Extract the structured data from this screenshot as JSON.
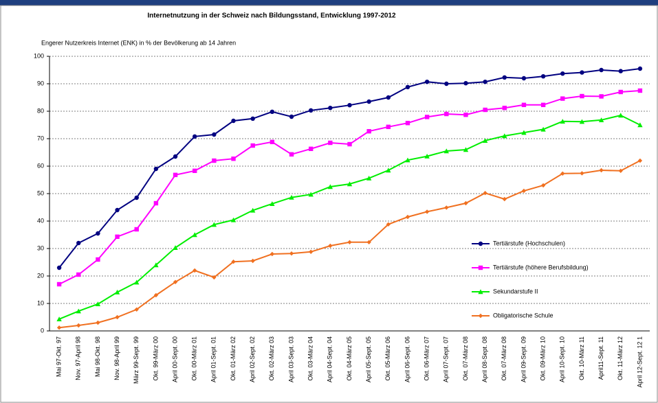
{
  "chart_data": {
    "type": "line",
    "title": "Internetnutzung in der Schweiz nach Bildungsstand, Entwicklung 1997-2012",
    "y_label": "Engerer Nutzerkreis Internet (ENK) in % der Bevölkerung ab 14 Jahren",
    "categories": [
      "Mai 97-Okt. 97",
      "Nov. 97-April 98",
      "Mai 98-Okt. 98",
      "Nov. 98-April 99",
      "März 99-Sept. 99",
      "Okt. 99-März 00",
      "April 00-Sept. 00",
      "Okt. 00-März 01",
      "April 01-Sept. 01",
      "Okt. 01-März 02",
      "April 02-Sept. 02",
      "Okt. 02-März 03",
      "April 03-Sept. 03",
      "Okt. 03-März 04",
      "April 04-Sept. 04",
      "Okt. 04-März 05",
      "April 05-Sept. 05",
      "Okt. 05-März 06",
      "April 06-Sept. 06",
      "Okt. 06-März 07",
      "April 07-Sept. 07",
      "Okt. 07-März 08",
      "April 08-Sept. 08",
      "Okt. 07-März 08",
      "April 09-Sept. 09",
      "Okt. 09-März 10",
      "April 10-Sept. 10",
      "Okt. 10-März 11",
      "April11-Sept. 11",
      "Okt. 11-März 12",
      "April 12-Sept. 12 1"
    ],
    "series": [
      {
        "name": "Tertiärstufe (Hochschulen)",
        "color": "#000080",
        "marker": "circle",
        "values": [
          23,
          32,
          35.5,
          44,
          48.5,
          59,
          63.5,
          70.8,
          71.5,
          76.5,
          77.3,
          79.8,
          78,
          80.3,
          81.2,
          82.2,
          83.5,
          85,
          88.8,
          90.7,
          90,
          90.2,
          90.7,
          92.3,
          92,
          92.7,
          93.7,
          94.1,
          95,
          94.6,
          95.5
        ]
      },
      {
        "name": "Tertiärstufe (höhere Berufsbildung)",
        "color": "#ff00ff",
        "marker": "square",
        "values": [
          17,
          20.5,
          26,
          34.3,
          37,
          46.5,
          56.8,
          58.3,
          62,
          62.7,
          67.5,
          68.8,
          64.3,
          66.3,
          68.5,
          68,
          72.7,
          74.3,
          75.7,
          77.9,
          79,
          78.7,
          80.5,
          81.2,
          82.3,
          82.3,
          84.6,
          85.5,
          85.4,
          87,
          87.5
        ]
      },
      {
        "name": "Sekundarstufe II",
        "color": "#00ee00",
        "marker": "triangle",
        "values": [
          4.3,
          7.2,
          9.8,
          14.1,
          17.7,
          24,
          30.3,
          35,
          38.7,
          40.4,
          43.9,
          46.3,
          48.6,
          49.7,
          52.5,
          53.5,
          55.6,
          58.5,
          62.2,
          63.6,
          65.5,
          66,
          69.3,
          71,
          72.2,
          73.4,
          76.3,
          76.2,
          76.8,
          78.5,
          75
        ]
      },
      {
        "name": "Obligatorische Schule",
        "color": "#f07020",
        "marker": "diamond",
        "values": [
          1.2,
          2,
          3,
          5,
          7.8,
          13,
          17.8,
          22,
          19.5,
          25.2,
          25.5,
          28,
          28.2,
          28.8,
          31,
          32.3,
          32.3,
          38.8,
          41.5,
          43.4,
          44.9,
          46.5,
          50.2,
          48,
          51,
          53,
          57.3,
          57.4,
          58.5,
          58.3,
          62
        ]
      }
    ],
    "ylim": [
      0,
      100
    ],
    "yticks": [
      0,
      10,
      20,
      30,
      40,
      50,
      60,
      70,
      80,
      90,
      100
    ],
    "grid": true
  }
}
